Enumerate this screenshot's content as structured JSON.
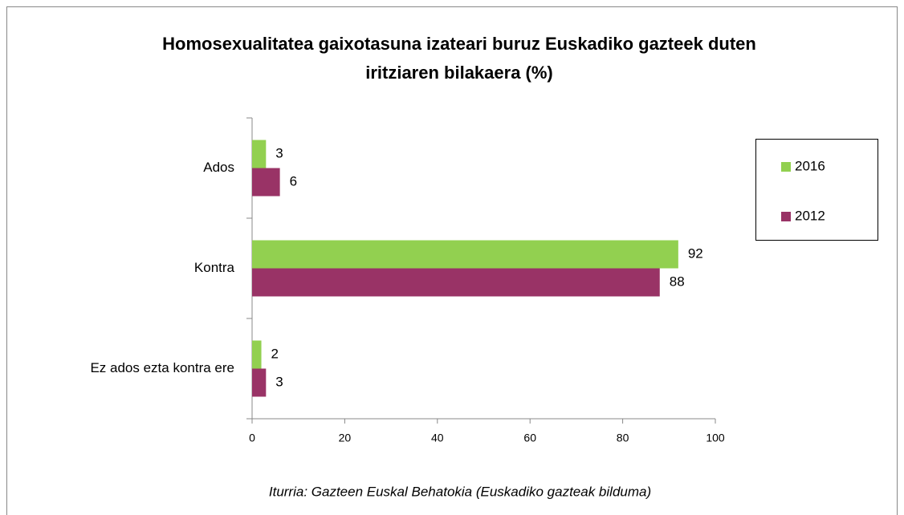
{
  "chart_data": {
    "type": "hbar",
    "title": [
      "Homosexualitatea gaixotasuna izateari buruz Euskadiko gazteek duten",
      "iritziaren bilakaera (%)"
    ],
    "categories": [
      "Ados",
      "Kontra",
      "Ez ados ezta kontra ere"
    ],
    "series": [
      {
        "name": "2016",
        "color": "#92d050",
        "values": [
          3,
          92,
          2
        ]
      },
      {
        "name": "2012",
        "color": "#993366",
        "values": [
          6,
          88,
          3
        ]
      }
    ],
    "xlim": [
      0,
      100
    ],
    "xticks": [
      0,
      20,
      40,
      60,
      80,
      100
    ],
    "grid": false,
    "legend": "right",
    "source": "Iturria: Gazteen Euskal Behatokia (Euskadiko gazteak bilduma)"
  }
}
